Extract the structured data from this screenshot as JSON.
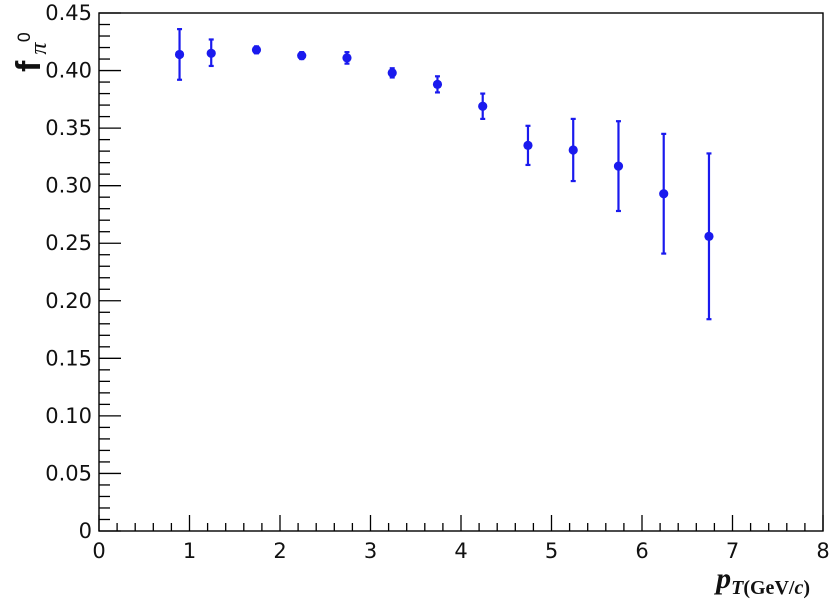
{
  "chart_data": {
    "type": "scatter",
    "title": "",
    "xlabel": {
      "base": "p",
      "subscript": "T",
      "unit_prefix": "(GeV/",
      "unit_italic": "c",
      "unit_suffix": ")"
    },
    "ylabel": {
      "base": "f",
      "subscript": "π",
      "superscript": "0"
    },
    "xlim": [
      0,
      8
    ],
    "ylim": [
      0,
      0.45
    ],
    "x_ticks": [
      0,
      1,
      2,
      3,
      4,
      5,
      6,
      7,
      8
    ],
    "x_tick_labels": [
      "0",
      "1",
      "2",
      "3",
      "4",
      "5",
      "6",
      "7",
      "8"
    ],
    "y_ticks": [
      0,
      0.05,
      0.1,
      0.15,
      0.2,
      0.25,
      0.3,
      0.35,
      0.4,
      0.45
    ],
    "y_tick_labels": [
      "0",
      "0.05",
      "0.10",
      "0.15",
      "0.20",
      "0.25",
      "0.30",
      "0.35",
      "0.40",
      "0.45"
    ],
    "grid": false,
    "marker_color": "#1a1aee",
    "series": [
      {
        "x": [
          0.89,
          1.24,
          1.74,
          2.24,
          2.74,
          3.24,
          3.74,
          4.24,
          4.74,
          5.24,
          5.74,
          6.24,
          6.74
        ],
        "y": [
          0.414,
          0.415,
          0.418,
          0.413,
          0.411,
          0.398,
          0.388,
          0.369,
          0.335,
          0.331,
          0.317,
          0.293,
          0.256
        ],
        "err_low": [
          0.022,
          0.011,
          0.003,
          0.003,
          0.005,
          0.004,
          0.007,
          0.011,
          0.017,
          0.027,
          0.039,
          0.052,
          0.072
        ],
        "err_high": [
          0.022,
          0.012,
          0.003,
          0.003,
          0.005,
          0.004,
          0.007,
          0.011,
          0.017,
          0.027,
          0.039,
          0.052,
          0.072
        ]
      }
    ]
  }
}
